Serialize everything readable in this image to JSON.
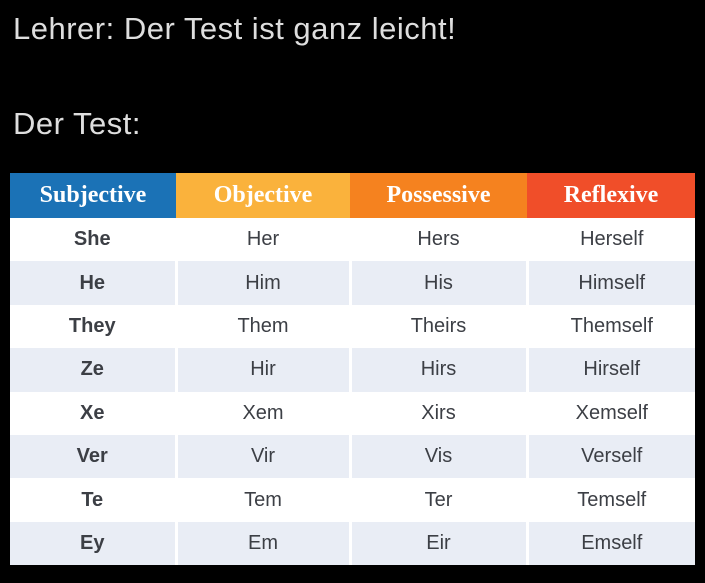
{
  "caption": {
    "line1": "Lehrer: Der Test ist ganz leicht!",
    "line2": "Der Test:"
  },
  "table": {
    "columns": [
      {
        "label": "Subjective",
        "color": "#1b72b6"
      },
      {
        "label": "Objective",
        "color": "#fab23c"
      },
      {
        "label": "Possessive",
        "color": "#f5821f"
      },
      {
        "label": "Reflexive",
        "color": "#f04e29"
      }
    ],
    "rows": [
      [
        "She",
        "Her",
        "Hers",
        "Herself"
      ],
      [
        "He",
        "Him",
        "His",
        "Himself"
      ],
      [
        "They",
        "Them",
        "Theirs",
        "Themself"
      ],
      [
        "Ze",
        "Hir",
        "Hirs",
        "Hirself"
      ],
      [
        "Xe",
        "Xem",
        "Xirs",
        "Xemself"
      ],
      [
        "Ver",
        "Vir",
        "Vis",
        "Verself"
      ],
      [
        "Te",
        "Tem",
        "Ter",
        "Temself"
      ],
      [
        "Ey",
        "Em",
        "Eir",
        "Emself"
      ]
    ]
  },
  "colors": {
    "background": "#000000",
    "caption_text": "#dedede",
    "row_alt": "#e9edf5",
    "cell_text": "#3c3f45"
  }
}
